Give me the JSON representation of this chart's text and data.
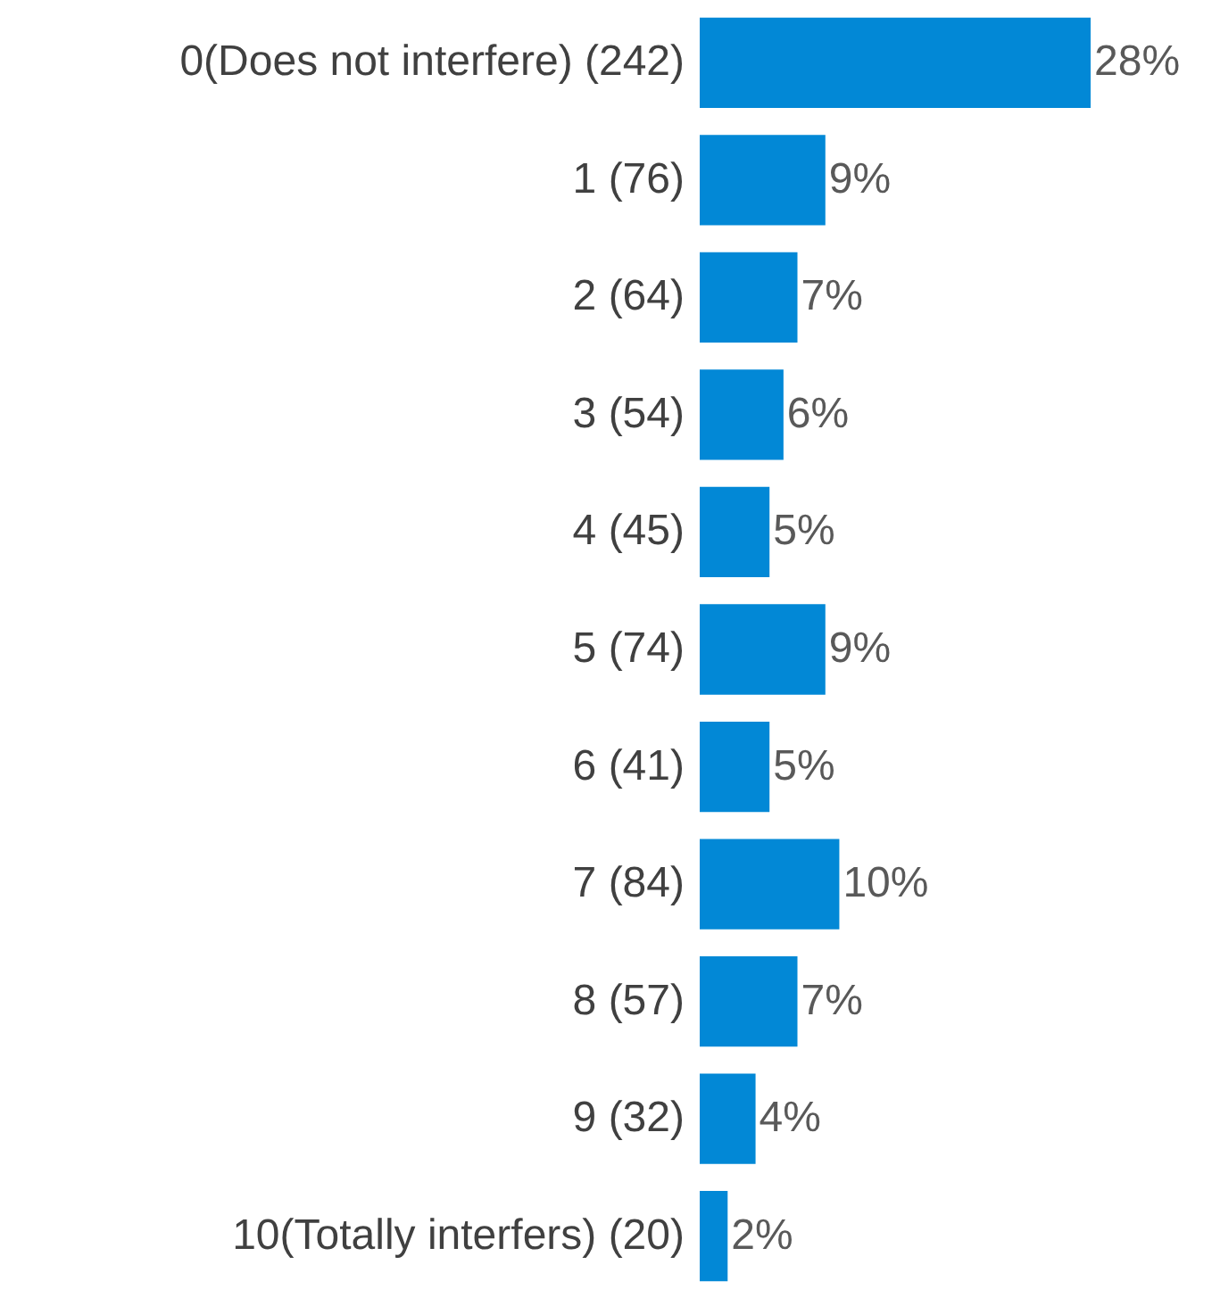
{
  "chart_data": {
    "type": "bar",
    "orientation": "horizontal",
    "categories": [
      "0(Does not interfere) (242)",
      "1 (76)",
      "2 (64)",
      "3 (54)",
      "4 (45)",
      "5 (74)",
      "6 (41)",
      "7 (84)",
      "8 (57)",
      "9 (32)",
      "10(Totally interfers) (20)"
    ],
    "values": [
      28,
      9,
      7,
      6,
      5,
      9,
      5,
      10,
      7,
      4,
      2
    ],
    "value_labels": [
      "28%",
      "9%",
      "7%",
      "6%",
      "5%",
      "9%",
      "5%",
      "10%",
      "7%",
      "4%",
      "2%"
    ],
    "color": "#0288d6"
  }
}
